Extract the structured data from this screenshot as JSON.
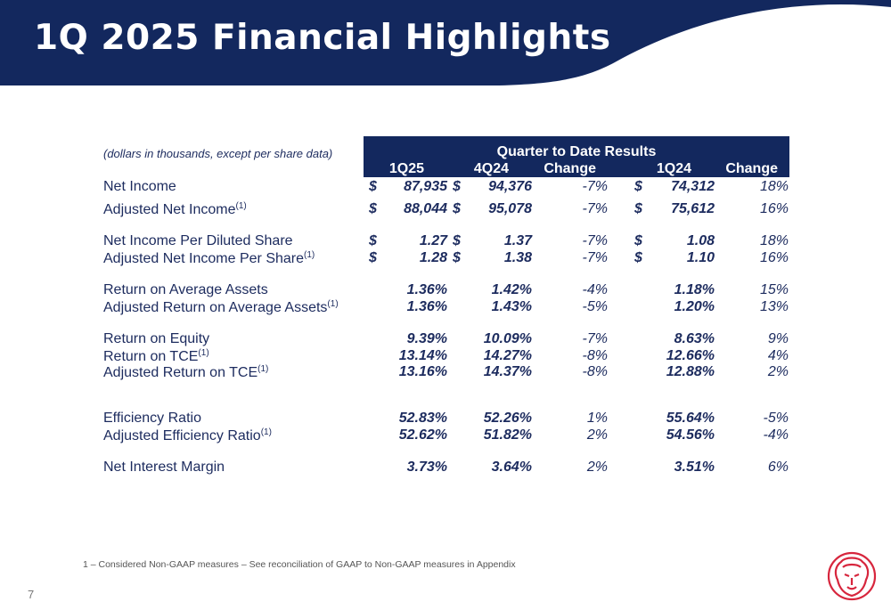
{
  "title": "1Q 2025 Financial Highlights",
  "note": "(dollars in thousands, except per share data)",
  "header": "Quarter to Date Results",
  "columns": [
    "1Q25",
    "4Q24",
    "Change",
    "1Q24",
    "Change"
  ],
  "rows": [
    {
      "label": "Net Income",
      "sup": "",
      "c1": "$",
      "v1": "87,935",
      "c2": "$",
      "v2": "94,376",
      "ch1": "-7%",
      "c3": "$",
      "v3": "74,312",
      "ch2": "18%"
    },
    {
      "label": "Adjusted Net Income",
      "sup": "(1)",
      "c1": "$",
      "v1": "88,044",
      "c2": "$",
      "v2": "95,078",
      "ch1": "-7%",
      "c3": "$",
      "v3": "75,612",
      "ch2": "16%"
    },
    {
      "label": "Net Income Per Diluted Share",
      "sup": "",
      "c1": "$",
      "v1": "1.27",
      "c2": "$",
      "v2": "1.37",
      "ch1": "-7%",
      "c3": "$",
      "v3": "1.08",
      "ch2": "18%"
    },
    {
      "label": "Adjusted Net Income Per Share",
      "sup": "(1)",
      "c1": "$",
      "v1": "1.28",
      "c2": "$",
      "v2": "1.38",
      "ch1": "-7%",
      "c3": "$",
      "v3": "1.10",
      "ch2": "16%"
    },
    {
      "label": "Return on Average Assets",
      "sup": "",
      "c1": "",
      "v1": "1.36%",
      "c2": "",
      "v2": "1.42%",
      "ch1": "-4%",
      "c3": "",
      "v3": "1.18%",
      "ch2": "15%"
    },
    {
      "label": "Adjusted Return on Average Assets",
      "sup": "(1)",
      "c1": "",
      "v1": "1.36%",
      "c2": "",
      "v2": "1.43%",
      "ch1": "-5%",
      "c3": "",
      "v3": "1.20%",
      "ch2": "13%"
    },
    {
      "label": "Return on Equity",
      "sup": "",
      "c1": "",
      "v1": "9.39%",
      "c2": "",
      "v2": "10.09%",
      "ch1": "-7%",
      "c3": "",
      "v3": "8.63%",
      "ch2": "9%"
    },
    {
      "label": "Return on TCE",
      "sup": "(1)",
      "c1": "",
      "v1": "13.14%",
      "c2": "",
      "v2": "14.27%",
      "ch1": "-8%",
      "c3": "",
      "v3": "12.66%",
      "ch2": "4%"
    },
    {
      "label": "Adjusted Return on TCE",
      "sup": "(1)",
      "c1": "",
      "v1": "13.16%",
      "c2": "",
      "v2": "14.37%",
      "ch1": "-8%",
      "c3": "",
      "v3": "12.88%",
      "ch2": "2%"
    },
    {
      "label": "Efficiency Ratio",
      "sup": "",
      "c1": "",
      "v1": "52.83%",
      "c2": "",
      "v2": "52.26%",
      "ch1": "1%",
      "c3": "",
      "v3": "55.64%",
      "ch2": "-5%"
    },
    {
      "label": "Adjusted Efficiency Ratio",
      "sup": "(1)",
      "c1": "",
      "v1": "52.62%",
      "c2": "",
      "v2": "51.82%",
      "ch1": "2%",
      "c3": "",
      "v3": "54.56%",
      "ch2": "-4%"
    },
    {
      "label": "Net Interest Margin",
      "sup": "",
      "c1": "",
      "v1": "3.73%",
      "c2": "",
      "v2": "3.64%",
      "ch1": "2%",
      "c3": "",
      "v3": "3.51%",
      "ch2": "6%"
    }
  ],
  "footnote": "1 – Considered Non-GAAP measures – See reconciliation of GAAP to Non-GAAP measures in Appendix",
  "page_number": "7",
  "colors": {
    "navy": "#13285e",
    "text": "#1c2b5e",
    "logo": "#d7263d"
  }
}
